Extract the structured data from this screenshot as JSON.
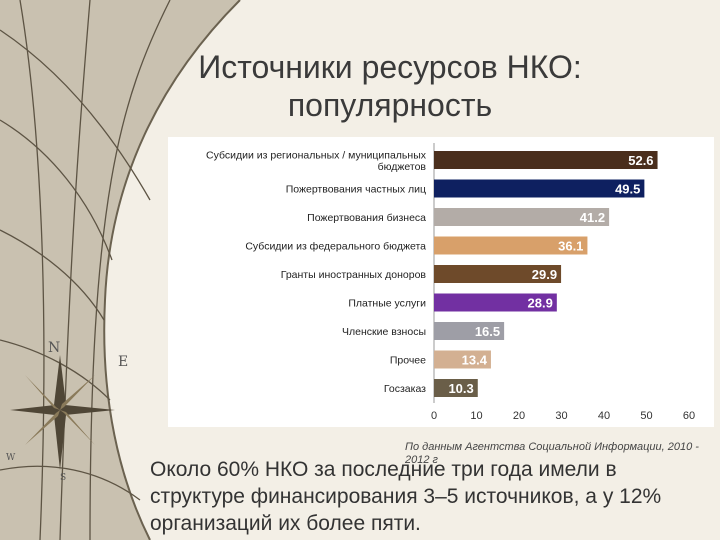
{
  "slide": {
    "title_line1": "Источники ресурсов НКО:",
    "title_line2": "популярность",
    "source_note": "По данным Агентства Социальной Информации, 2010 - 2012 г",
    "caption": "Около 60% НКО за последние три года имели в структуре финансирования 3–5 источников, а у 12% организаций их более пяти."
  },
  "compass": {
    "labels": [
      "N",
      "E",
      "W",
      "S"
    ]
  },
  "chart_data": {
    "type": "bar",
    "orientation": "horizontal",
    "categories": [
      "Субсидии из региональных / муниципальных бюджетов",
      "Пожертвования частных лиц",
      "Пожертвования бизнеса",
      "Субсидии из федерального бюджета",
      "Гранты иностранных доноров",
      "Платные услуги",
      "Членские взносы",
      "Прочее",
      "Госзаказ"
    ],
    "values": [
      52.6,
      49.5,
      41.2,
      36.1,
      29.9,
      28.9,
      16.5,
      13.4,
      10.3
    ],
    "value_labels": [
      "52.6",
      "49.5",
      "41.2",
      "36.1",
      "29.9",
      "28.9",
      "16.5",
      "13.4",
      "10.3"
    ],
    "colors": [
      "#4a2e1c",
      "#0e2060",
      "#b3aca7",
      "#d8a06a",
      "#6e4a2a",
      "#7230a2",
      "#9e9ea6",
      "#d3b092",
      "#6a5e48"
    ],
    "x_ticks": [
      "0",
      "10",
      "20",
      "30",
      "40",
      "50",
      "60"
    ],
    "xlim": [
      0,
      60
    ],
    "grid": false,
    "legend": "none",
    "title": "",
    "xlabel": "",
    "ylabel": ""
  }
}
